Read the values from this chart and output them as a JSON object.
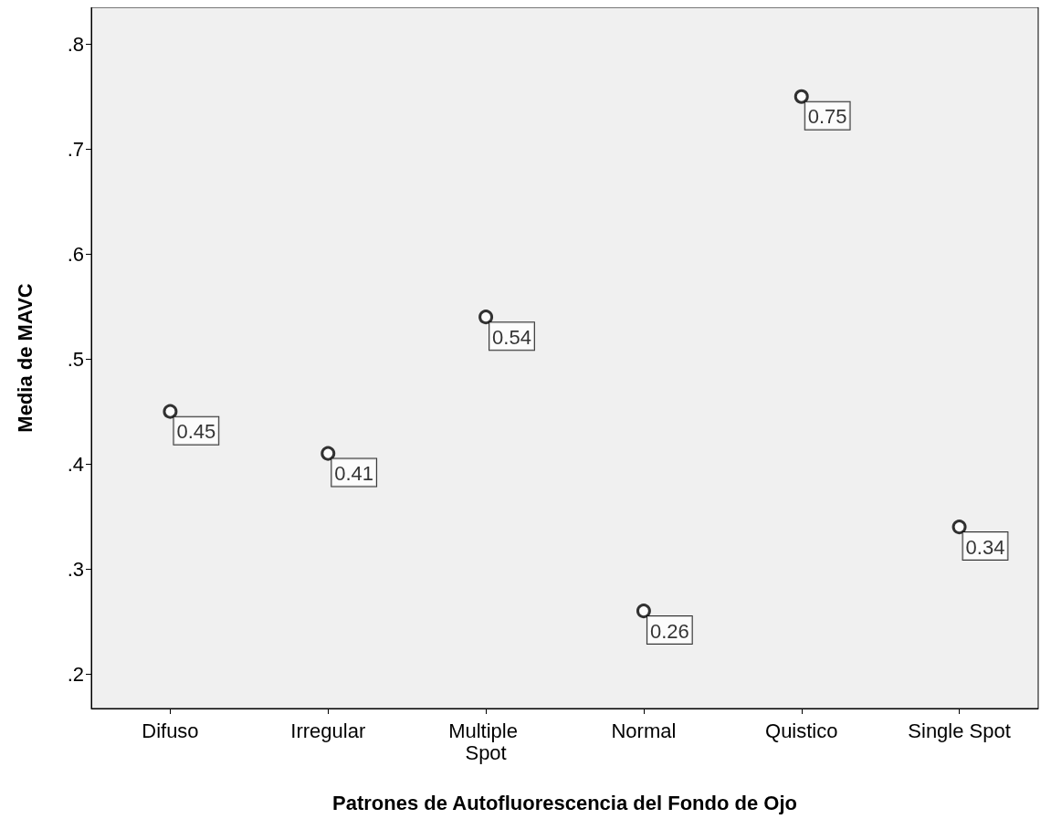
{
  "chart_data": {
    "type": "scatter",
    "xlabel": "Patrones de Autofluorescencia del Fondo de Ojo",
    "ylabel": "Media de MAVC",
    "categories": [
      "Difuso",
      "Irregular",
      "Multiple Spot",
      "Normal",
      "Quistico",
      "Single Spot"
    ],
    "values": [
      0.45,
      0.41,
      0.54,
      0.26,
      0.75,
      0.34
    ],
    "color": "#000000",
    "data_labels": true,
    "marker": "circle",
    "ylim": [
      0.167,
      0.835
    ],
    "yticks": [
      {
        "value": 0.2,
        "label": ".2"
      },
      {
        "value": 0.3,
        "label": ".3"
      },
      {
        "value": 0.4,
        "label": ".4"
      },
      {
        "value": 0.5,
        "label": ".5"
      },
      {
        "value": 0.6,
        "label": ".6"
      },
      {
        "value": 0.7,
        "label": ".7"
      },
      {
        "value": 0.8,
        "label": ".8"
      }
    ],
    "grid": false
  }
}
